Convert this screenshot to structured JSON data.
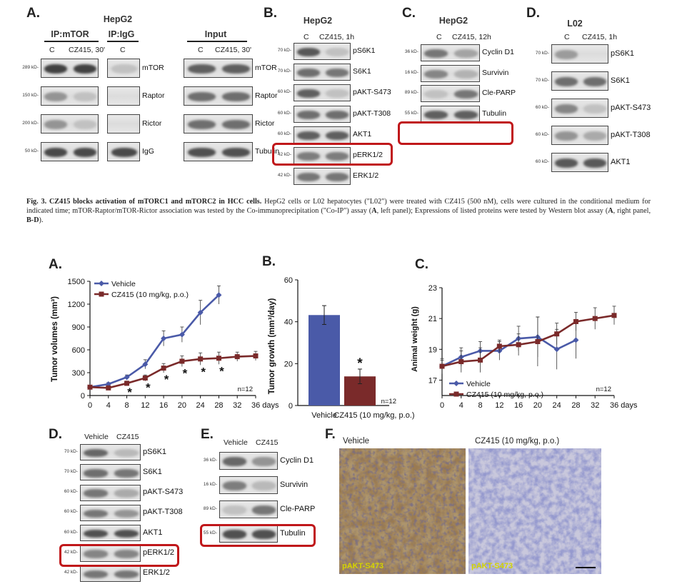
{
  "fig3": {
    "A": {
      "panel": "A.",
      "cell_line": "HepG2",
      "ip_mtor": "IP:mTOR",
      "ip_igg": "IP:IgG",
      "input": "Input",
      "lanes_ip": [
        "C",
        "CZ415, 30'"
      ],
      "lane_igg": "C",
      "lanes_input": [
        "C",
        "CZ415, 30'"
      ],
      "mw": [
        "289 kD-",
        "150 kD-",
        "200 kD-",
        "50 kD-"
      ],
      "ip_rows": [
        "mTOR",
        "Raptor",
        "Rictor",
        "IgG"
      ],
      "input_rows": [
        "mTOR",
        "Raptor",
        "Rictor",
        "Tubulin"
      ]
    },
    "B": {
      "panel": "B.",
      "cell_line": "HepG2",
      "lanes": [
        "C",
        "CZ415, 1h"
      ],
      "mw": [
        "70 kD-",
        "70 kD-",
        "60 kD-",
        "60 kD-",
        "60 kD-",
        "42 kD-",
        "42 kD-"
      ],
      "rows": [
        "pS6K1",
        "S6K1",
        "pAKT-S473",
        "pAKT-T308",
        "AKT1",
        "pERK1/2",
        "ERK1/2"
      ]
    },
    "C": {
      "panel": "C.",
      "cell_line": "HepG2",
      "lanes": [
        "C",
        "CZ415, 12h"
      ],
      "mw": [
        "36 kD-",
        "16 kD-",
        "89 kD-",
        "55 kD-"
      ],
      "rows": [
        "Cyclin D1",
        "Survivin",
        "Cle-PARP",
        "Tubulin"
      ]
    },
    "D": {
      "panel": "D.",
      "cell_line": "L02",
      "lanes": [
        "C",
        "CZ415, 1h"
      ],
      "mw": [
        "70 kD-",
        "70 kD-",
        "60 kD-",
        "60 kD-",
        "60 kD-"
      ],
      "rows": [
        "pS6K1",
        "S6K1",
        "pAKT-S473",
        "pAKT-T308",
        "AKT1"
      ]
    },
    "caption": {
      "title": "Fig. 3. CZ415 blocks activation of mTORC1 and mTORC2 in HCC cells.",
      "body": " HepG2 cells or L02 hepatocytes (\"L02\") were treated with CZ415 (500 nM), cells were cultured in the conditional medium for indicated time; mTOR-Raptor/mTOR-Rictor association was tested by the Co-immunoprecipitation (\"Co-IP\") assay (",
      "b1": "A",
      "mid": ", left panel); Expressions of listed proteins were tested by Western blot assay (",
      "b2": "A",
      "mid2": ", right panel, ",
      "b3": "B-D",
      "end": ")."
    }
  },
  "fig4": {
    "A": {
      "panel": "A.",
      "ylabel": "Tumor volumes (mm³)",
      "yticks": [
        "0",
        "300",
        "600",
        "900",
        "1200",
        "1500"
      ],
      "xticks": [
        "0",
        "4",
        "8",
        "12",
        "16",
        "20",
        "24",
        "28",
        "32",
        "36 days"
      ],
      "legend": [
        "Vehicle",
        "CZ415 (10 mg/kg, p.o.)"
      ],
      "n": "n=12",
      "star": "*"
    },
    "B": {
      "panel": "B.",
      "ylabel": "Tumor growth (mm³/day)",
      "yticks": [
        "0",
        "20",
        "40",
        "60"
      ],
      "xlabels": [
        "Vehicle",
        "CZ415 (10 mg/kg, p.o.)"
      ],
      "n": "n=12",
      "star": "*"
    },
    "C": {
      "panel": "C.",
      "ylabel": "Animal weight (g)",
      "yticks": [
        "17",
        "19",
        "21",
        "23"
      ],
      "xticks": [
        "0",
        "4",
        "8",
        "12",
        "16",
        "20",
        "24",
        "28",
        "32",
        "36 days"
      ],
      "legend": [
        "Vehicle",
        "CZ415 (10 mg/kg, p.o.)"
      ],
      "n": "n=12"
    },
    "D": {
      "panel": "D.",
      "lanes": [
        "Vehicle",
        "CZ415"
      ],
      "mw": [
        "70 kD-",
        "70 kD-",
        "60 kD-",
        "60 kD-",
        "60 kD-",
        "42 kD-",
        "42 kD-"
      ],
      "rows": [
        "pS6K1",
        "S6K1",
        "pAKT-S473",
        "pAKT-T308",
        "AKT1",
        "pERK1/2",
        "ERK1/2"
      ]
    },
    "E": {
      "panel": "E.",
      "lanes": [
        "Vehicle",
        "CZ415"
      ],
      "mw": [
        "36 kD-",
        "16 kD-",
        "89 kD-",
        "55 kD-"
      ],
      "rows": [
        "Cyclin D1",
        "Survivin",
        "Cle-PARP",
        "Tubulin"
      ]
    },
    "F": {
      "panel": "F.",
      "left_title": "Vehicle",
      "right_title": "CZ415 (10 mg/kg, p.o.)",
      "left_stain": "pAKT-S473",
      "right_stain": "pAKT-S473"
    }
  },
  "colors": {
    "vehicle": "#4a5aa8",
    "cz415": "#7a2a2a",
    "highlight": "#c0171a",
    "stain_label": "#d4d400"
  },
  "chart_data": [
    {
      "type": "line",
      "title": "",
      "xlabel": "days",
      "ylabel": "Tumor volumes (mm³)",
      "xlim": [
        0,
        36
      ],
      "ylim": [
        0,
        1500
      ],
      "x": [
        0,
        4,
        8,
        12,
        16,
        20,
        24,
        28,
        32,
        36
      ],
      "series": [
        {
          "name": "Vehicle",
          "x": [
            0,
            4,
            8,
            12,
            16,
            20,
            24,
            28
          ],
          "values": [
            110,
            150,
            240,
            410,
            750,
            800,
            1090,
            1320
          ],
          "errors": [
            20,
            20,
            30,
            60,
            100,
            100,
            160,
            120
          ]
        },
        {
          "name": "CZ415 (10 mg/kg, p.o.)",
          "x": [
            0,
            4,
            8,
            12,
            16,
            20,
            24,
            28,
            32,
            36
          ],
          "values": [
            110,
            100,
            160,
            230,
            360,
            450,
            480,
            490,
            510,
            520
          ],
          "errors": [
            20,
            20,
            30,
            40,
            60,
            70,
            80,
            80,
            60,
            60
          ]
        }
      ],
      "significant_x": [
        8,
        12,
        16,
        20,
        24,
        28
      ]
    },
    {
      "type": "bar",
      "title": "",
      "ylabel": "Tumor growth (mm³/day)",
      "ylim": [
        0,
        60
      ],
      "categories": [
        "Vehicle",
        "CZ415 (10 mg/kg, p.o.)"
      ],
      "values": [
        43.2,
        13.9
      ],
      "errors": [
        4.5,
        3.5
      ]
    },
    {
      "type": "line",
      "title": "",
      "xlabel": "days",
      "ylabel": "Animal weight (g)",
      "xlim": [
        0,
        36
      ],
      "ylim": [
        16,
        23
      ],
      "x": [
        0,
        4,
        8,
        12,
        16,
        20,
        24,
        28,
        32,
        36
      ],
      "series": [
        {
          "name": "Vehicle",
          "x": [
            0,
            4,
            8,
            12,
            16,
            20,
            24,
            28
          ],
          "values": [
            17.9,
            18.5,
            18.9,
            18.9,
            19.7,
            19.8,
            19.0,
            19.6
          ],
          "errors": [
            0.5,
            0.6,
            0.6,
            0.6,
            0.8,
            1.3,
            1.3,
            1.2
          ]
        },
        {
          "name": "CZ415 (10 mg/kg, p.o.)",
          "x": [
            0,
            4,
            8,
            12,
            16,
            20,
            24,
            28,
            32,
            36
          ],
          "values": [
            17.9,
            18.2,
            18.3,
            19.2,
            19.3,
            19.5,
            20.0,
            20.8,
            21.0,
            21.2
          ],
          "errors": [
            0.4,
            0.7,
            0.8,
            0.4,
            0.7,
            1.6,
            0.7,
            0.6,
            0.7,
            0.6
          ]
        }
      ]
    }
  ]
}
